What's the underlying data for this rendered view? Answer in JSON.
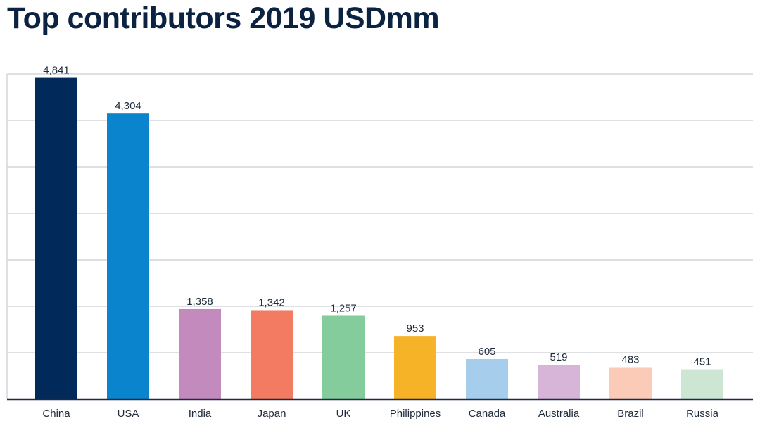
{
  "chart_data": {
    "type": "bar",
    "title": "Top contributors 2019 USDmm",
    "xlabel": "",
    "ylabel": "",
    "ylim": [
      0,
      4900
    ],
    "grid": true,
    "y_gridline_step": 700,
    "categories": [
      "China",
      "USA",
      "India",
      "Japan",
      "UK",
      "Philippines",
      "Canada",
      "Australia",
      "Brazil",
      "Russia"
    ],
    "values": [
      4841,
      4304,
      1358,
      1342,
      1257,
      953,
      605,
      519,
      483,
      451
    ],
    "value_labels": [
      "4,841",
      "4,304",
      "1,358",
      "1,342",
      "1,257",
      "953",
      "605",
      "519",
      "483",
      "451"
    ],
    "colors": [
      "#012a5b",
      "#0a84cc",
      "#c38bbd",
      "#f27b62",
      "#85cc9c",
      "#f6b328",
      "#a6cdec",
      "#d7b5d8",
      "#fbcbb8",
      "#cce6d3"
    ]
  }
}
